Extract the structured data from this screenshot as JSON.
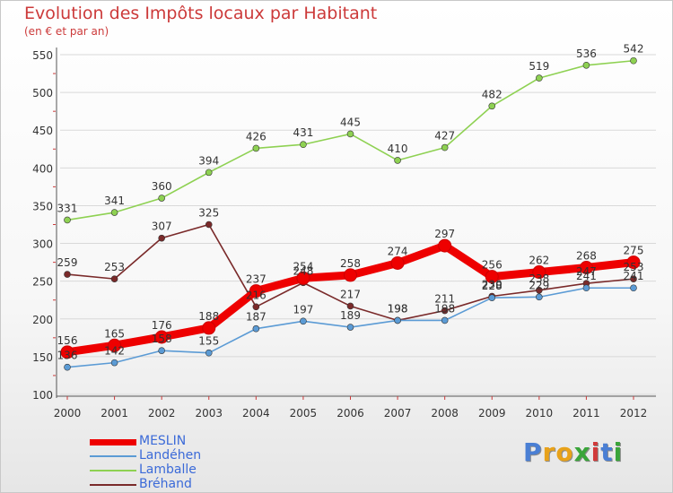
{
  "title": "Evolution des Impôts locaux par Habitant",
  "subtitle": "(en € et par an)",
  "logo_text": "Proxiti",
  "chart_data": {
    "type": "line",
    "title": "Evolution des Impôts locaux par Habitant",
    "subtitle": "(en € et par an)",
    "xlabel": "",
    "ylabel": "",
    "x": [
      "2000",
      "2001",
      "2002",
      "2003",
      "2004",
      "2005",
      "2006",
      "2007",
      "2008",
      "2009",
      "2010",
      "2011",
      "2012"
    ],
    "ylim": [
      100,
      550
    ],
    "yticks": [
      100,
      150,
      200,
      250,
      300,
      350,
      400,
      450,
      500,
      550
    ],
    "grid": true,
    "legend_position": "bottom-left",
    "series": [
      {
        "name": "MESLIN",
        "color": "#ee0000",
        "values": [
          156,
          165,
          176,
          188,
          237,
          254,
          258,
          274,
          297,
          256,
          262,
          268,
          275
        ]
      },
      {
        "name": "Landéhen",
        "color": "#5b9bd5",
        "values": [
          136,
          142,
          158,
          155,
          187,
          197,
          189,
          198,
          198,
          228,
          229,
          241,
          241
        ]
      },
      {
        "name": "Lamballe",
        "color": "#8ed152",
        "values": [
          331,
          341,
          360,
          394,
          426,
          431,
          445,
          410,
          427,
          482,
          519,
          536,
          542
        ]
      },
      {
        "name": "Bréhand",
        "color": "#7a2a2a",
        "values": [
          259,
          253,
          307,
          325,
          216,
          248,
          217,
          198,
          211,
          230,
          238,
          247,
          253
        ]
      }
    ]
  }
}
